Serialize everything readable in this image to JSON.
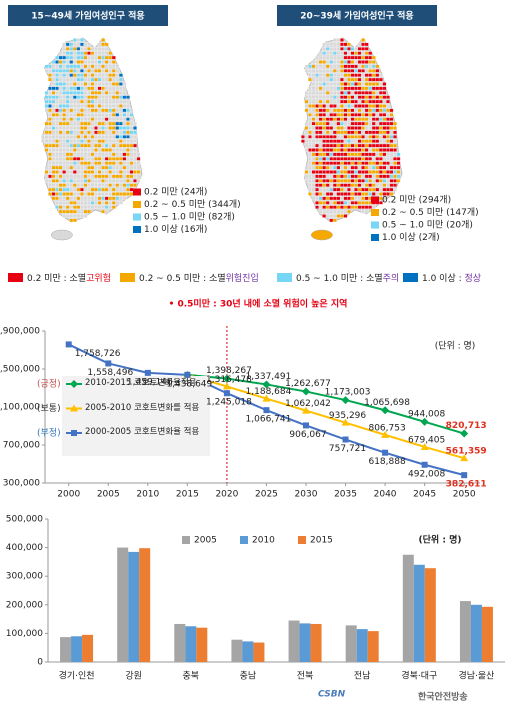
{
  "maps": [
    {
      "title": "15~49세 가임여성인구 적용",
      "legend": [
        "0.2 미만 (24개)",
        "0.2 ~ 0.5 미만 (344개)",
        "0.5 ~ 1.0 미만 (82개)",
        "1.0 이상 (16개)"
      ]
    },
    {
      "title": "20~39세 가임여성인구 적용",
      "legend": [
        "0.2 미만 (294개)",
        "0.2 ~ 0.5 미만 (147개)",
        "0.5 ~ 1.0 미만 (20개)",
        "1.0 이상 (2개)"
      ]
    }
  ],
  "risk_legend": [
    {
      "range": "0.2 미만 : 소멸",
      "status": "고위험",
      "color": "#e60012",
      "status_color": "#e60012"
    },
    {
      "range": "0.2 ~ 0.5 미만 : 소멸",
      "status": "위험진입",
      "color": "#f5a800",
      "status_color": "#7030a0"
    },
    {
      "range": "0.5 ~ 1.0 미만 : 소멸",
      "status": "주의",
      "color": "#75d6f5",
      "status_color": "#7030a0"
    },
    {
      "range": "1.0 이상 : ",
      "status": "정상",
      "color": "#0070c0",
      "status_color": "#7030a0"
    }
  ],
  "note": "• 0.5미만 : 30년 내에 소멸 위험이 높은 지역",
  "chart_data": [
    {
      "type": "line",
      "x": [
        2000,
        2005,
        2010,
        2015,
        2020,
        2025,
        2030,
        2035,
        2040,
        2045,
        2050
      ],
      "xlim": [
        1997,
        2052
      ],
      "xticks": [
        2000,
        2005,
        2010,
        2015,
        2020,
        2025,
        2030,
        2035,
        2040,
        2045,
        2050
      ],
      "ylim": [
        300000,
        1900000
      ],
      "yticks": [
        {
          "value": 300000,
          "label": "300,000"
        },
        {
          "value": 700000,
          "label": "700,000"
        },
        {
          "value": 1100000,
          "label": "1,100,000"
        },
        {
          "value": 1500000,
          "label": "1,500,000"
        },
        {
          "value": 1900000,
          "label": "1,900,000"
        }
      ],
      "unit": "(단위 : 명)",
      "divider_x": 2020,
      "series": [
        {
          "name": "2010-2015 코호트변화율적용",
          "prefix": "(긍정)",
          "prefix_color": "#c0504d",
          "color": "#00a650",
          "marker": "diamond",
          "values": [
            null,
            null,
            null,
            1438649,
            1398267,
            1337491,
            1262677,
            1173003,
            1065698,
            944008,
            820713
          ],
          "value_labels": [
            null,
            null,
            null,
            null,
            "1,398,267",
            "1,337,491",
            "1,262,677",
            "1,173,003",
            "1,065,698",
            "944,008",
            "820,713"
          ]
        },
        {
          "name": "2005-2010 코호트변화를 적용",
          "prefix": "(보통)",
          "prefix_color": "#333333",
          "color": "#ffc000",
          "marker": "triangle",
          "values": [
            null,
            null,
            null,
            1438649,
            1316478,
            1188684,
            1062042,
            935296,
            806753,
            679405,
            561359
          ],
          "value_labels": [
            null,
            null,
            null,
            null,
            "1,316,478",
            "1,188,684",
            "1,062,042",
            "935,296",
            "806,753",
            "679,405",
            "561,359"
          ]
        },
        {
          "name": "2000-2005 코호트변화율 적용",
          "prefix": "(부정)",
          "prefix_color": "#2e75b6",
          "color": "#4472c4",
          "marker": "square",
          "values": [
            1758726,
            1558496,
            1459146,
            1438649,
            1245018,
            1066741,
            906067,
            757721,
            618888,
            492008,
            382611
          ],
          "value_labels": [
            "1,758,726",
            "1,558,496",
            "1,459,146",
            "1,438,649",
            "1,245,018",
            "1,066,741",
            "906,067",
            "757,721",
            "618,888",
            "492,008",
            "382,611"
          ]
        }
      ]
    },
    {
      "type": "bar",
      "categories": [
        "경기·인천",
        "강원",
        "충북",
        "충남",
        "전북",
        "전남",
        "경북·대구",
        "경남·울산"
      ],
      "ylim": [
        0,
        500000
      ],
      "yticks": [
        0,
        {
          "value": 100000,
          "label": "100,000"
        },
        {
          "value": 200000,
          "label": "200,000"
        },
        {
          "value": 300000,
          "label": "300,000"
        },
        {
          "value": 400000,
          "label": "400,000"
        },
        {
          "value": 500000,
          "label": "500,000"
        }
      ],
      "unit": "(단위 : 명)",
      "series": [
        {
          "name": "2005",
          "color": "#a5a5a5",
          "values": [
            87000,
            400000,
            133000,
            78000,
            145000,
            128000,
            375000,
            213000
          ]
        },
        {
          "name": "2010",
          "color": "#5b9bd5",
          "values": [
            90000,
            385000,
            125000,
            72000,
            135000,
            115000,
            340000,
            200000
          ]
        },
        {
          "name": "2015",
          "color": "#ed7d31",
          "values": [
            95000,
            398000,
            120000,
            68000,
            133000,
            108000,
            328000,
            193000
          ]
        }
      ]
    }
  ],
  "watermark": {
    "logo": "CSBN",
    "text": "한국안전방송"
  }
}
